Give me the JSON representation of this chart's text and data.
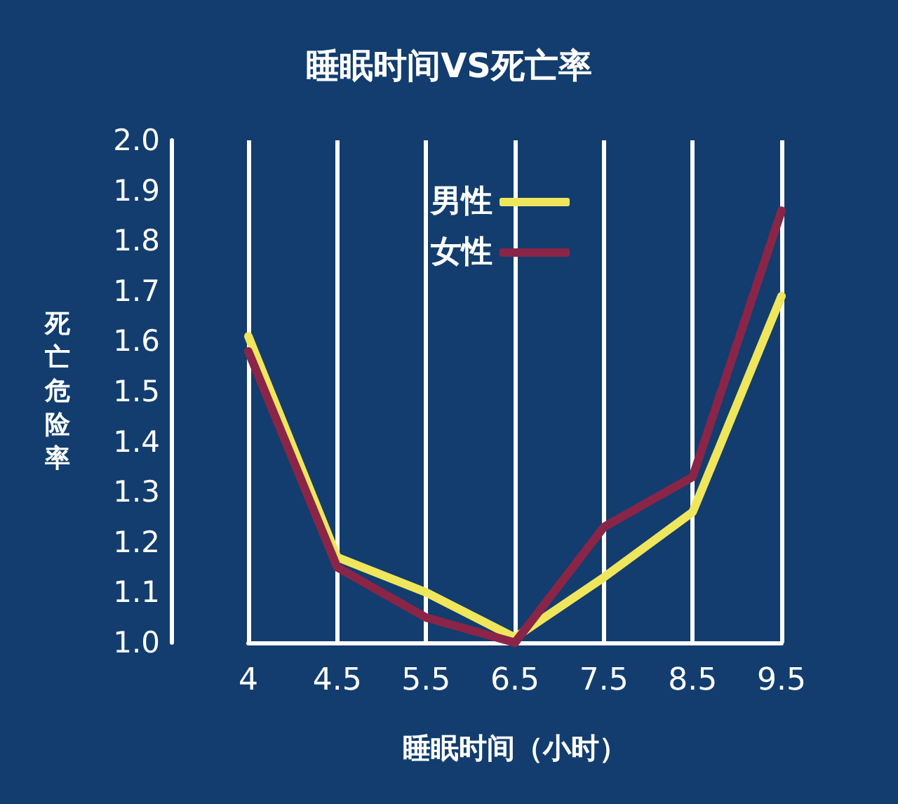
{
  "chart_data": {
    "type": "line",
    "title": "睡眠时间VS死亡率",
    "xlabel": "睡眠时间（小时）",
    "ylabel": "死亡危险率",
    "categories": [
      "4",
      "4.5",
      "5.5",
      "6.5",
      "7.5",
      "8.5",
      "9.5"
    ],
    "series": [
      {
        "name": "男性",
        "color": "#efe65c",
        "values": [
          1.61,
          1.17,
          1.1,
          1.01,
          1.13,
          1.26,
          1.69
        ]
      },
      {
        "name": "女性",
        "color": "#8a2548",
        "values": [
          1.58,
          1.15,
          1.05,
          1.0,
          1.23,
          1.33,
          1.86
        ]
      }
    ],
    "ylim": [
      1.0,
      2.0
    ],
    "yticks": [
      {
        "value": 1,
        "label": "1.0"
      },
      1.1,
      1.2,
      1.3,
      1.4,
      1.5,
      1.6,
      1.7,
      1.8,
      1.9,
      {
        "value": 2,
        "label": "2.0"
      }
    ],
    "grid": "x",
    "legend": "top",
    "marker": "none",
    "line_style": "solid"
  }
}
